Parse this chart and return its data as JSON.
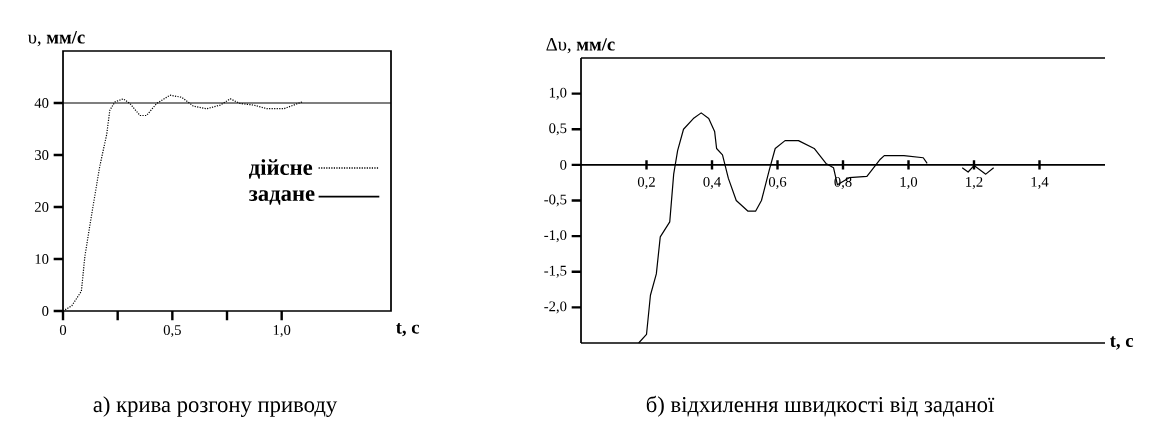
{
  "chart_data": [
    {
      "type": "line",
      "ylabel": "υ, **мм/с**",
      "xlabel": "**t, с**",
      "xlim": [
        0,
        1.5
      ],
      "ylim": [
        0,
        50
      ],
      "xticks": [
        0,
        {
          "value": 0.25,
          "label": null
        },
        {
          "value": 0.5,
          "label": "0,5"
        },
        {
          "value": 0.75,
          "label": null
        },
        {
          "value": 1.0,
          "label": "1,0"
        }
      ],
      "yticks": [
        0,
        10,
        20,
        30,
        40
      ],
      "legend": "right",
      "series": [
        {
          "name": "дійсне",
          "color": "#000000",
          "line_style": "dotted",
          "x": [
            0,
            0.04,
            0.084,
            0.1,
            0.122,
            0.168,
            0.2,
            0.214,
            0.237,
            0.275,
            0.306,
            0.352,
            0.382,
            0.428,
            0.489,
            0.543,
            0.596,
            0.657,
            0.719,
            0.765,
            0.81,
            0.872,
            0.933,
            1.01,
            1.055,
            1.093
          ],
          "values": [
            0,
            1,
            3.8,
            10.5,
            16.3,
            27.8,
            34,
            38.6,
            40.2,
            40.8,
            39.9,
            37.6,
            37.6,
            39.9,
            41.5,
            41.1,
            39.4,
            38.9,
            39.6,
            40.8,
            39.9,
            39.6,
            38.9,
            38.9,
            39.6,
            40.2
          ]
        },
        {
          "name": "задане",
          "color": "#000000",
          "line_style": "solid",
          "x": [
            0,
            1.5
          ],
          "values": [
            40,
            40
          ]
        }
      ],
      "annotations": [
        "а) крива розгону приводу"
      ]
    },
    {
      "type": "line",
      "ylabel": "Δυ, **мм/с**",
      "xlabel": "**t, с**",
      "xlim": [
        0,
        1.6
      ],
      "ylim": [
        -2.5,
        1.5
      ],
      "xticks": [
        {
          "value": 0.2,
          "label": "0,2"
        },
        {
          "value": 0.4,
          "label": "0,4"
        },
        {
          "value": 0.6,
          "label": "0,6"
        },
        {
          "value": 0.8,
          "label": "0,8"
        },
        {
          "value": 1.0,
          "label": "1,0"
        },
        {
          "value": 1.2,
          "label": "1,2"
        },
        {
          "value": 1.4,
          "label": "1,4"
        }
      ],
      "yticks": [
        {
          "value": 1.0,
          "label": "1,0"
        },
        {
          "value": 0.5,
          "label": "0,5"
        },
        0,
        {
          "value": -0.5,
          "label": "-0,5"
        },
        {
          "value": -1.0,
          "label": "-1,0"
        },
        {
          "value": -1.5,
          "label": "-1,5"
        },
        {
          "value": -2.0,
          "label": "-2,0"
        }
      ],
      "series": [
        {
          "color": "#000000",
          "line_style": "solid",
          "x": [
            0.176,
            0.2,
            0.212,
            0.23,
            0.242,
            0.271,
            0.283,
            0.295,
            0.313,
            0.343,
            0.367,
            0.39,
            0.408,
            0.414,
            0.432,
            0.45,
            0.474,
            0.51,
            0.533,
            0.551,
            0.575,
            0.593,
            0.623,
            0.664,
            0.712,
            0.748,
            0.771,
            0.783,
            0.819,
            0.873,
            0.914,
            0.926,
            0.986,
            1.045,
            1.057,
            1.11,
            1.164,
            1.182,
            1.2,
            1.236,
            1.26
          ],
          "values": [
            -2.5,
            -2.38,
            -1.83,
            -1.53,
            -1.01,
            -0.8,
            -0.13,
            0.2,
            0.5,
            0.65,
            0.73,
            0.65,
            0.47,
            0.23,
            0.14,
            -0.19,
            -0.5,
            -0.65,
            -0.65,
            -0.5,
            -0.07,
            0.23,
            0.34,
            0.34,
            0.23,
            0.02,
            -0.04,
            -0.28,
            -0.18,
            -0.16,
            0.08,
            0.13,
            0.13,
            0.1,
            0.02,
            null,
            -0.04,
            -0.1,
            -0.01,
            -0.13,
            -0.04
          ]
        }
      ],
      "annotations": [
        "б) відхилення швидкості від заданої"
      ]
    }
  ]
}
